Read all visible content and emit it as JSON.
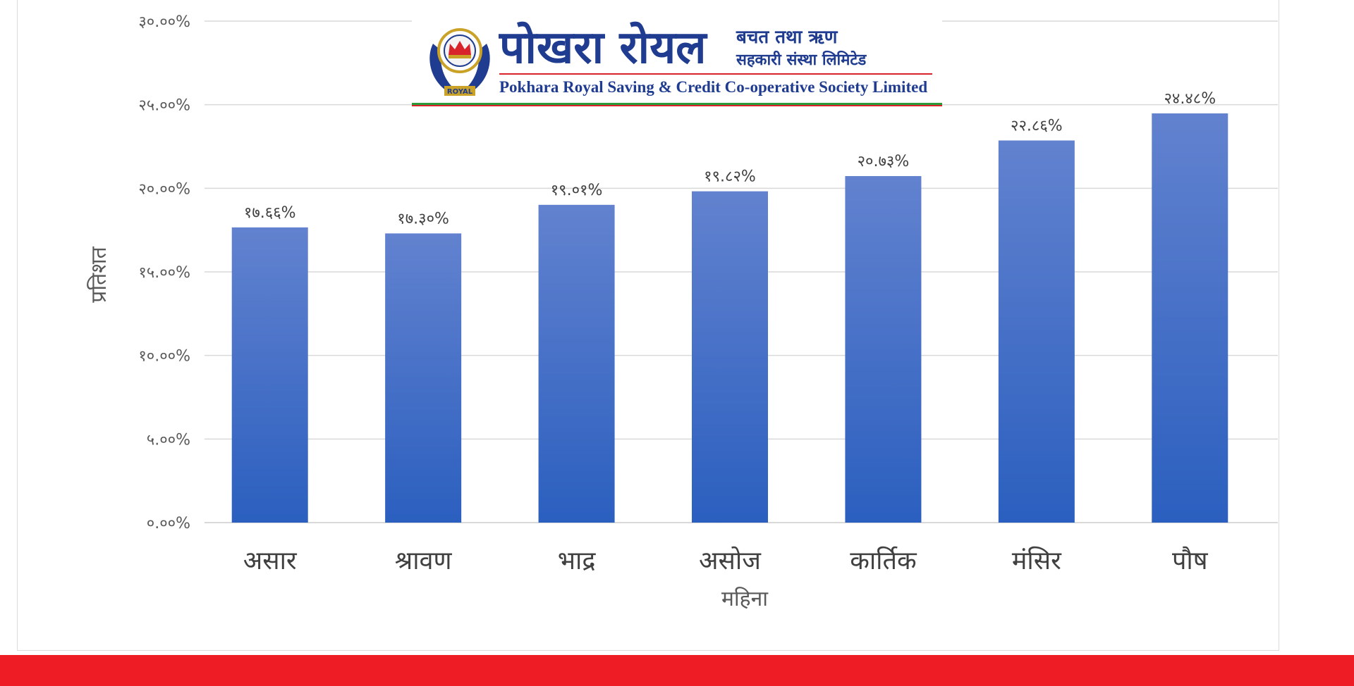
{
  "logo": {
    "title_ne": "पोखरा रोयल",
    "subtitle_ne_1": "बचत तथा ऋण",
    "subtitle_ne_2": "सहकारी संस्था लिमिटेड",
    "title_en": "Pokhara Royal Saving & Credit Co-operative Society Limited",
    "emblem_text": "ROYAL",
    "emblem_icon": "crown-hands-emblem-icon"
  },
  "colors": {
    "bar_top": "#6282cf",
    "bar_bottom": "#2b5fbf",
    "grid": "#d9d9d9",
    "footer_red": "#ee1c25",
    "brand_blue": "#1f3c91"
  },
  "chart_data": {
    "type": "bar",
    "xlabel": "महिना",
    "ylabel": "प्रतिशत",
    "ylim": [
      0,
      30
    ],
    "yticks": [
      0,
      5,
      10,
      15,
      20,
      25,
      30
    ],
    "ytick_labels": [
      "०.००%",
      "५.००%",
      "१०.००%",
      "१५.००%",
      "२०.००%",
      "२५.००%",
      "३०.००%"
    ],
    "grid": true,
    "legend": "none",
    "categories": [
      "असार",
      "श्रावण",
      "भाद्र",
      "असोज",
      "कार्तिक",
      "मंसिर",
      "पौष"
    ],
    "values": [
      17.66,
      17.3,
      19.01,
      19.82,
      20.73,
      22.86,
      24.48
    ],
    "data_labels": [
      "१७.६६%",
      "१७.३०%",
      "१९.०१%",
      "१९.८२%",
      "२०.७३%",
      "२२.८६%",
      "२४.४८%"
    ]
  }
}
